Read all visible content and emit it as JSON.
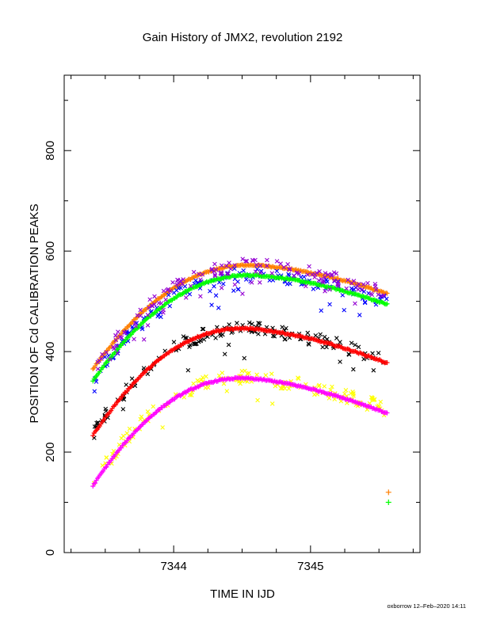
{
  "chart_data": {
    "type": "scatter",
    "title": "Gain History of JMX2, revolution 2192",
    "xlabel": "TIME IN IJD",
    "ylabel": "POSITION OF Cd CALIBRATION PEAKS",
    "footer": "oxborrow 12–Feb–2020 14:11",
    "xlim": [
      7343.2,
      7345.8
    ],
    "ylim": [
      0,
      950
    ],
    "x_ticks": [
      {
        "value": 7344,
        "label": "7344"
      },
      {
        "value": 7345,
        "label": "7345"
      }
    ],
    "y_ticks": [
      {
        "value": 0,
        "label": "0"
      },
      {
        "value": 200,
        "label": "200"
      },
      {
        "value": 400,
        "label": "400"
      },
      {
        "value": 600,
        "label": "600"
      },
      {
        "value": 800,
        "label": "800"
      }
    ],
    "grid": false,
    "series": [
      {
        "color": "#ff7f00",
        "marker": "+",
        "x_start": 7343.41,
        "x_end": 7345.56,
        "y_start": 365,
        "peak_x": 7344.56,
        "peak_y": 572,
        "y_end": 515
      },
      {
        "color": "#0000ff",
        "marker": "x",
        "x_start": 7343.41,
        "x_end": 7345.56,
        "y_start": 345,
        "peak_x": 7344.56,
        "peak_y": 553,
        "y_end": 497
      },
      {
        "color": "#00ff00",
        "marker": "+",
        "x_start": 7343.41,
        "x_end": 7345.56,
        "y_start": 342,
        "peak_x": 7344.56,
        "peak_y": 552,
        "y_end": 494
      },
      {
        "color": "#9400d3",
        "marker": "x",
        "x_start": 7343.41,
        "x_end": 7345.56,
        "y_start": 362,
        "peak_x": 7344.56,
        "peak_y": 571,
        "y_end": 514
      },
      {
        "color": "#000000",
        "marker": "x",
        "x_start": 7343.41,
        "x_end": 7345.56,
        "y_start": 238,
        "peak_x": 7344.5,
        "peak_y": 446,
        "y_end": 382
      },
      {
        "color": "#ff0000",
        "marker": "+",
        "x_start": 7343.41,
        "x_end": 7345.56,
        "y_start": 233,
        "peak_x": 7344.5,
        "peak_y": 446,
        "y_end": 377
      },
      {
        "color": "#ffff00",
        "marker": "x",
        "x_start": 7343.41,
        "x_end": 7345.56,
        "y_start": 140,
        "peak_x": 7344.5,
        "peak_y": 348,
        "y_end": 285
      },
      {
        "color": "#ff00ff",
        "marker": "+",
        "x_start": 7343.41,
        "x_end": 7345.56,
        "y_start": 133,
        "peak_x": 7344.5,
        "peak_y": 347,
        "y_end": 277
      }
    ],
    "key_marks": [
      {
        "color": "#ff7f00",
        "x": 7345.57,
        "y": 120
      },
      {
        "color": "#00ff00",
        "x": 7345.57,
        "y": 100
      }
    ]
  }
}
